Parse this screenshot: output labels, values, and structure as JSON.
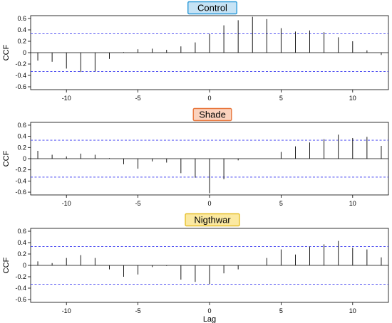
{
  "chart_data": [
    {
      "type": "bar",
      "title": "Control",
      "title_fill": "#c6e3f5",
      "title_border": "#2b9ad8",
      "xlabel": "",
      "ylabel": "CCF",
      "xlim": [
        -12.5,
        12.5
      ],
      "ylim": [
        -0.65,
        0.65
      ],
      "xticks": [
        -10,
        -5,
        0,
        5,
        10
      ],
      "yticks": [
        -0.6,
        -0.4,
        -0.2,
        0,
        0.2,
        0.4,
        0.6
      ],
      "ci": 0.33,
      "lags": [
        -12,
        -11,
        -10,
        -9,
        -8,
        -7,
        -6,
        -5,
        -4,
        -3,
        -2,
        -1,
        0,
        1,
        2,
        3,
        4,
        5,
        6,
        7,
        8,
        9,
        10,
        11,
        12
      ],
      "values": [
        -0.14,
        -0.16,
        -0.28,
        -0.34,
        -0.33,
        -0.11,
        0.01,
        0.06,
        0.07,
        0.05,
        0.11,
        0.18,
        0.33,
        0.48,
        0.57,
        0.63,
        0.59,
        0.43,
        0.37,
        0.39,
        0.36,
        0.27,
        0.2,
        0.04,
        -0.04
      ]
    },
    {
      "type": "bar",
      "title": "Shade",
      "title_fill": "#fbd2bd",
      "title_border": "#e8773d",
      "xlabel": "",
      "ylabel": "CCF",
      "xlim": [
        -12.5,
        12.5
      ],
      "ylim": [
        -0.65,
        0.65
      ],
      "xticks": [
        -10,
        -5,
        0,
        5,
        10
      ],
      "yticks": [
        -0.6,
        -0.4,
        -0.2,
        0,
        0.2,
        0.4,
        0.6
      ],
      "ci": 0.33,
      "lags": [
        -12,
        -11,
        -10,
        -9,
        -8,
        -7,
        -6,
        -5,
        -4,
        -3,
        -2,
        -1,
        0,
        1,
        2,
        3,
        4,
        5,
        6,
        7,
        8,
        9,
        10,
        11,
        12
      ],
      "values": [
        0.14,
        0.07,
        0.04,
        0.09,
        0.07,
        0.01,
        -0.1,
        -0.18,
        -0.05,
        -0.07,
        -0.26,
        -0.34,
        -0.62,
        -0.37,
        -0.03,
        0.0,
        0.0,
        0.12,
        0.22,
        0.29,
        0.35,
        0.43,
        0.37,
        0.39,
        0.23
      ]
    },
    {
      "type": "bar",
      "title": "Nigthwar",
      "title_fill": "#fbe9a1",
      "title_border": "#e6c02c",
      "xlabel": "Lag",
      "ylabel": "CCF",
      "xlim": [
        -12.5,
        12.5
      ],
      "ylim": [
        -0.65,
        0.65
      ],
      "xticks": [
        -10,
        -5,
        0,
        5,
        10
      ],
      "yticks": [
        -0.6,
        -0.4,
        -0.2,
        0,
        0.2,
        0.4,
        0.6
      ],
      "ci": 0.33,
      "lags": [
        -12,
        -11,
        -10,
        -9,
        -8,
        -7,
        -6,
        -5,
        -4,
        -3,
        -2,
        -1,
        0,
        1,
        2,
        3,
        4,
        5,
        6,
        7,
        8,
        9,
        10,
        11,
        12
      ],
      "values": [
        0.07,
        0.04,
        0.13,
        0.18,
        0.13,
        -0.07,
        -0.2,
        -0.16,
        -0.03,
        -0.01,
        -0.25,
        -0.29,
        -0.33,
        -0.14,
        -0.07,
        0.0,
        0.13,
        0.28,
        0.19,
        0.33,
        0.37,
        0.43,
        0.31,
        0.28,
        0.14
      ]
    }
  ]
}
